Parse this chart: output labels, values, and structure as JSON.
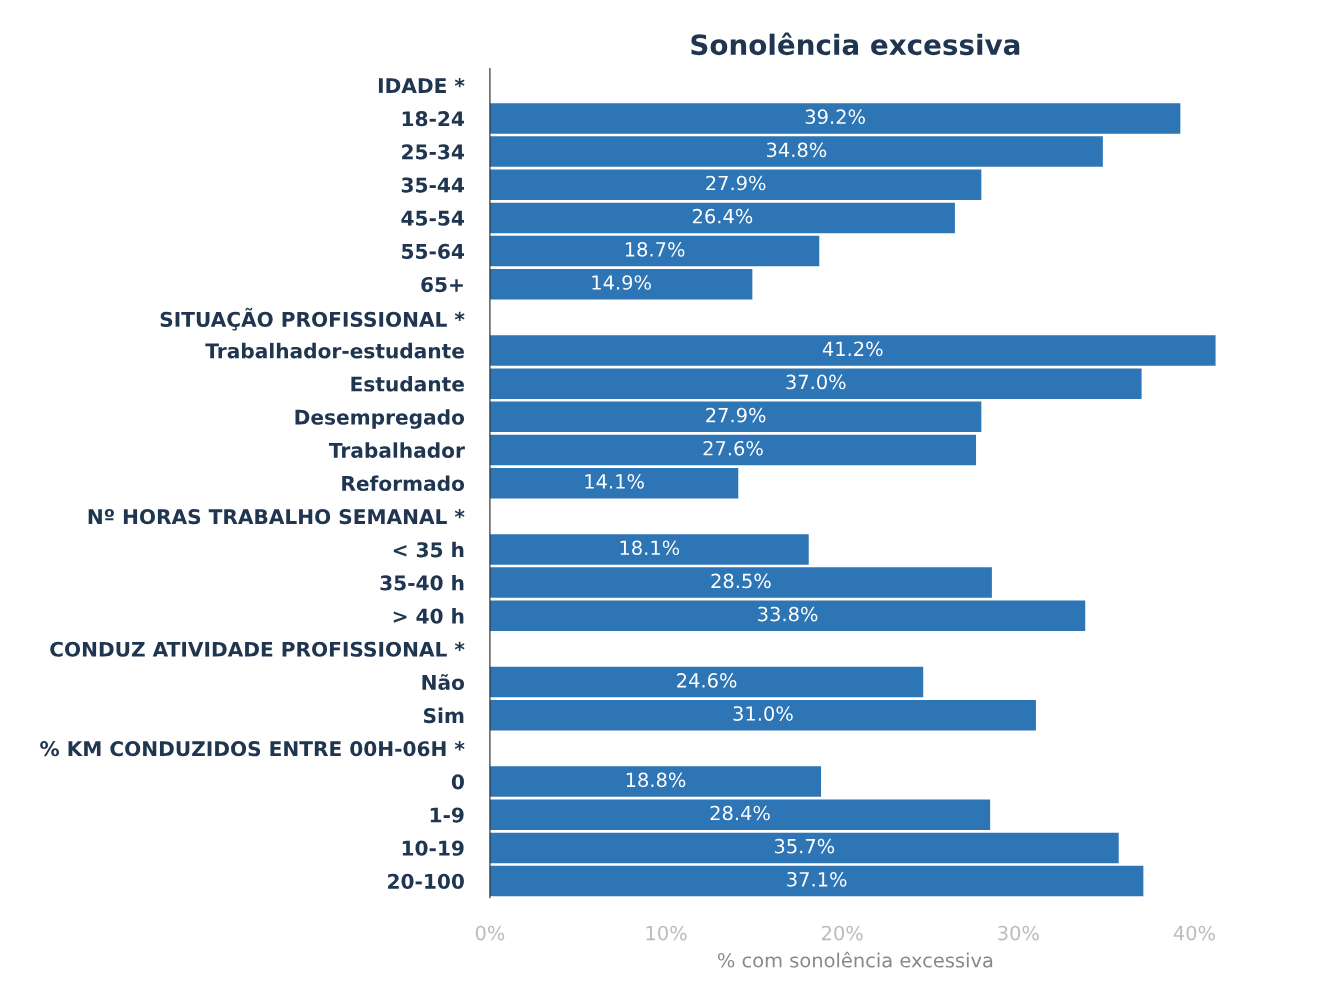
{
  "chart_data": {
    "type": "bar",
    "orientation": "horizontal",
    "title": "Sonolência excessiva",
    "xlabel": "% com sonolência excessiva",
    "categories": [
      "IDADE *",
      "18-24",
      "25-34",
      "35-44",
      "45-54",
      "55-64",
      "65+",
      "SITUAÇÃO PROFISSIONAL *",
      "Trabalhador-estudante",
      "Estudante",
      "Desempregado",
      "Trabalhador",
      "Reformado",
      "Nº HORAS TRABALHO SEMANAL *",
      "< 35 h",
      "35-40 h",
      "> 40 h",
      "CONDUZ ATIVIDADE PROFISSIONAL *",
      "Não",
      "Sim",
      "% KM CONDUZIDOS ENTRE 00H-06H *",
      "0",
      "1-9",
      "10-19",
      "20-100"
    ],
    "values": [
      null,
      39.2,
      34.8,
      27.9,
      26.4,
      18.7,
      14.9,
      null,
      41.2,
      37.0,
      27.9,
      27.6,
      14.1,
      null,
      18.1,
      28.5,
      33.8,
      null,
      24.6,
      31.0,
      null,
      18.8,
      28.4,
      35.7,
      37.1
    ],
    "value_labels": [
      null,
      "39.2%",
      "34.8%",
      "27.9%",
      "26.4%",
      "18.7%",
      "14.9%",
      null,
      "41.2%",
      "37.0%",
      "27.9%",
      "27.6%",
      "14.1%",
      null,
      "18.1%",
      "28.5%",
      "33.8%",
      null,
      "24.6%",
      "31.0%",
      null,
      "18.8%",
      "28.4%",
      "35.7%",
      "37.1%"
    ],
    "color": "#2e75b6",
    "xlim": [
      0,
      41.5
    ],
    "xticks": [
      {
        "value": 0,
        "label": "0%"
      },
      {
        "value": 10,
        "label": "10%"
      },
      {
        "value": 20,
        "label": "20%"
      },
      {
        "value": 30,
        "label": "30%"
      },
      {
        "value": 40,
        "label": "40%"
      }
    ],
    "grid": false,
    "legend": false
  }
}
